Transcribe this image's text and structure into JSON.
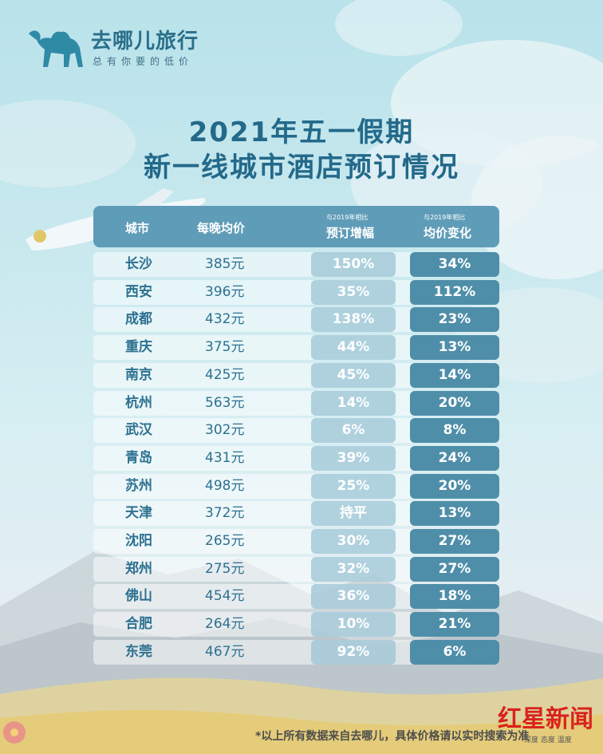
{
  "logo": {
    "icon": "camel-icon",
    "name": "去哪儿旅行",
    "slogan": "总有你要的低价"
  },
  "title": {
    "line1": "2021年五一假期",
    "line2": "新一线城市酒店预订情况"
  },
  "table": {
    "headers": {
      "city": "城市",
      "price": "每晚均价",
      "booking_small": "与2019年相比",
      "booking": "预订增幅",
      "avg_small": "与2019年相比",
      "avg": "均价变化"
    },
    "rows": [
      {
        "city": "长沙",
        "price": "385元",
        "booking": "150%",
        "avg": "34%"
      },
      {
        "city": "西安",
        "price": "396元",
        "booking": "35%",
        "avg": "112%"
      },
      {
        "city": "成都",
        "price": "432元",
        "booking": "138%",
        "avg": "23%"
      },
      {
        "city": "重庆",
        "price": "375元",
        "booking": "44%",
        "avg": "13%"
      },
      {
        "city": "南京",
        "price": "425元",
        "booking": "45%",
        "avg": "14%"
      },
      {
        "city": "杭州",
        "price": "563元",
        "booking": "14%",
        "avg": "20%"
      },
      {
        "city": "武汉",
        "price": "302元",
        "booking": "6%",
        "avg": "8%"
      },
      {
        "city": "青岛",
        "price": "431元",
        "booking": "39%",
        "avg": "24%"
      },
      {
        "city": "苏州",
        "price": "498元",
        "booking": "25%",
        "avg": "20%"
      },
      {
        "city": "天津",
        "price": "372元",
        "booking": "持平",
        "avg": "13%"
      },
      {
        "city": "沈阳",
        "price": "265元",
        "booking": "30%",
        "avg": "27%"
      },
      {
        "city": "郑州",
        "price": "275元",
        "booking": "32%",
        "avg": "27%"
      },
      {
        "city": "佛山",
        "price": "454元",
        "booking": "36%",
        "avg": "18%"
      },
      {
        "city": "合肥",
        "price": "264元",
        "booking": "10%",
        "avg": "21%"
      },
      {
        "city": "东莞",
        "price": "467元",
        "booking": "92%",
        "avg": "6%"
      }
    ]
  },
  "footer": {
    "note": "*以上所有数据来自去哪儿，具体价格请以实时搜索为准"
  },
  "watermark": {
    "brand": "红星新闻",
    "sub": "深度 态度 温度"
  },
  "decor": {
    "icons": [
      "cloud-icon",
      "airplane-icon",
      "mountain-icon",
      "grass-icon",
      "flower-icon"
    ],
    "colors": {
      "accent": "#2a6f8a",
      "header": "#5f9cb8",
      "avg_pill": "#4f8ea9",
      "brand_red": "#d9231d"
    }
  }
}
